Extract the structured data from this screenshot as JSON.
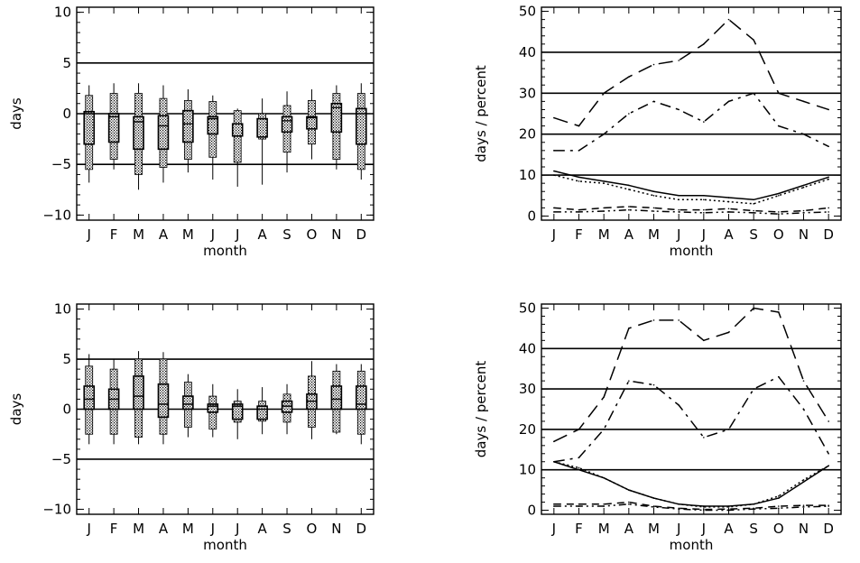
{
  "chart_data": [
    {
      "type": "box",
      "categories": [
        "J",
        "F",
        "M",
        "A",
        "M",
        "J",
        "J",
        "A",
        "S",
        "O",
        "N",
        "D"
      ],
      "xlabel": "month",
      "ylabel": "days",
      "ylim": [
        -10.5,
        10.5
      ],
      "yticks": [
        -10,
        -5,
        0,
        5,
        10
      ],
      "reference_lines": [
        -5,
        0,
        5
      ],
      "boxes": [
        {
          "whisker_low": -6.8,
          "p10": -5.5,
          "q1": -3.0,
          "median": 0.0,
          "q3": 0.2,
          "p90": 1.8,
          "whisker_high": 2.8
        },
        {
          "whisker_low": -5.5,
          "p10": -4.5,
          "q1": -2.8,
          "median": -0.3,
          "q3": 0.0,
          "p90": 2.0,
          "whisker_high": 3.0
        },
        {
          "whisker_low": -7.5,
          "p10": -6.0,
          "q1": -3.5,
          "median": -0.8,
          "q3": -0.3,
          "p90": 2.0,
          "whisker_high": 3.0
        },
        {
          "whisker_low": -6.8,
          "p10": -5.3,
          "q1": -3.5,
          "median": -1.2,
          "q3": -0.2,
          "p90": 1.5,
          "whisker_high": 2.8
        },
        {
          "whisker_low": -5.8,
          "p10": -4.5,
          "q1": -2.8,
          "median": -1.0,
          "q3": 0.3,
          "p90": 1.3,
          "whisker_high": 2.4
        },
        {
          "whisker_low": -6.5,
          "p10": -4.3,
          "q1": -2.0,
          "median": -0.5,
          "q3": -0.3,
          "p90": 1.2,
          "whisker_high": 1.8
        },
        {
          "whisker_low": -7.2,
          "p10": -4.8,
          "q1": -2.2,
          "median": -1.0,
          "q3": -1.0,
          "p90": 0.3,
          "whisker_high": 0.5
        },
        {
          "whisker_low": -7.0,
          "p10": -2.5,
          "q1": -2.3,
          "median": -0.5,
          "q3": -0.5,
          "p90": 0.0,
          "whisker_high": 1.5
        },
        {
          "whisker_low": -5.8,
          "p10": -3.8,
          "q1": -1.8,
          "median": -0.7,
          "q3": -0.3,
          "p90": 0.8,
          "whisker_high": 2.2
        },
        {
          "whisker_low": -4.5,
          "p10": -3.0,
          "q1": -1.5,
          "median": -0.4,
          "q3": -0.3,
          "p90": 1.3,
          "whisker_high": 2.4
        },
        {
          "whisker_low": -5.5,
          "p10": -4.5,
          "q1": -1.8,
          "median": 0.6,
          "q3": 1.0,
          "p90": 2.0,
          "whisker_high": 2.8
        },
        {
          "whisker_low": -6.5,
          "p10": -5.5,
          "q1": -3.0,
          "median": 0.0,
          "q3": 0.5,
          "p90": 2.0,
          "whisker_high": 3.0
        }
      ]
    },
    {
      "type": "line",
      "categories": [
        "J",
        "F",
        "M",
        "A",
        "M",
        "J",
        "J",
        "A",
        "S",
        "O",
        "N",
        "D"
      ],
      "xlabel": "month",
      "ylabel": "days / percent",
      "ylim": [
        -1,
        51
      ],
      "yticks": [
        0,
        10,
        20,
        30,
        40,
        50
      ],
      "reference_lines": [
        10,
        20,
        30,
        40
      ],
      "series": [
        {
          "style": "dashed",
          "values": [
            24,
            22,
            30,
            34,
            37,
            38,
            42,
            48,
            43,
            30,
            28,
            26
          ]
        },
        {
          "style": "dashdot",
          "values": [
            16,
            16,
            20,
            25,
            28,
            26,
            23,
            28,
            30,
            22,
            20,
            17
          ]
        },
        {
          "style": "solid",
          "values": [
            11,
            9.5,
            8.5,
            7.5,
            6,
            5,
            5,
            4.5,
            4,
            5.5,
            7.5,
            9.5
          ]
        },
        {
          "style": "dotted",
          "values": [
            10,
            8.5,
            8,
            6.5,
            5,
            4,
            4,
            3.5,
            3,
            5,
            7,
            9
          ]
        },
        {
          "style": "longdash",
          "values": [
            2,
            1.5,
            2,
            2.3,
            2,
            1.5,
            1.5,
            1.8,
            1.3,
            1,
            1.3,
            2
          ]
        },
        {
          "style": "dashdotdot",
          "values": [
            1,
            1,
            1.2,
            1.5,
            1.2,
            1,
            0.8,
            1,
            0.8,
            0.5,
            0.8,
            1
          ]
        }
      ]
    },
    {
      "type": "box",
      "categories": [
        "J",
        "F",
        "M",
        "A",
        "M",
        "J",
        "J",
        "A",
        "S",
        "O",
        "N",
        "D"
      ],
      "xlabel": "month",
      "ylabel": "days",
      "ylim": [
        -10.5,
        10.5
      ],
      "yticks": [
        -10,
        -5,
        0,
        5,
        10
      ],
      "reference_lines": [
        -5,
        0,
        5
      ],
      "boxes": [
        {
          "whisker_low": -3.5,
          "p10": -2.5,
          "q1": 0.0,
          "median": 1.0,
          "q3": 2.3,
          "p90": 4.3,
          "whisker_high": 5.5
        },
        {
          "whisker_low": -3.5,
          "p10": -2.5,
          "q1": 0.0,
          "median": 1.0,
          "q3": 2.0,
          "p90": 4.0,
          "whisker_high": 5.0
        },
        {
          "whisker_low": -3.5,
          "p10": -2.8,
          "q1": 0.0,
          "median": 1.3,
          "q3": 3.3,
          "p90": 5.0,
          "whisker_high": 5.8
        },
        {
          "whisker_low": -3.5,
          "p10": -2.5,
          "q1": -0.8,
          "median": 0.5,
          "q3": 2.5,
          "p90": 5.0,
          "whisker_high": 5.7
        },
        {
          "whisker_low": -2.8,
          "p10": -1.8,
          "q1": 0.0,
          "median": 0.5,
          "q3": 1.3,
          "p90": 2.7,
          "whisker_high": 3.5
        },
        {
          "whisker_low": -2.8,
          "p10": -2.0,
          "q1": -0.3,
          "median": 0.3,
          "q3": 0.5,
          "p90": 1.3,
          "whisker_high": 2.5
        },
        {
          "whisker_low": -3.0,
          "p10": -1.3,
          "q1": -1.0,
          "median": 0.3,
          "q3": 0.5,
          "p90": 0.8,
          "whisker_high": 2.0
        },
        {
          "whisker_low": -2.5,
          "p10": -1.2,
          "q1": -1.0,
          "median": 0.0,
          "q3": 0.3,
          "p90": 0.8,
          "whisker_high": 2.2
        },
        {
          "whisker_low": -2.5,
          "p10": -1.3,
          "q1": -0.3,
          "median": 0.3,
          "q3": 0.8,
          "p90": 1.5,
          "whisker_high": 2.5
        },
        {
          "whisker_low": -3.0,
          "p10": -1.8,
          "q1": 0.0,
          "median": 0.8,
          "q3": 1.5,
          "p90": 3.3,
          "whisker_high": 4.8
        },
        {
          "whisker_low": -2.5,
          "p10": -2.3,
          "q1": 0.0,
          "median": 1.0,
          "q3": 2.3,
          "p90": 3.8,
          "whisker_high": 4.5
        },
        {
          "whisker_low": -3.5,
          "p10": -2.5,
          "q1": 0.0,
          "median": 0.5,
          "q3": 2.3,
          "p90": 3.8,
          "whisker_high": 4.5
        }
      ]
    },
    {
      "type": "line",
      "categories": [
        "J",
        "F",
        "M",
        "A",
        "M",
        "J",
        "J",
        "A",
        "S",
        "O",
        "N",
        "D"
      ],
      "xlabel": "month",
      "ylabel": "days / percent",
      "ylim": [
        -1,
        51
      ],
      "yticks": [
        0,
        10,
        20,
        30,
        40,
        50
      ],
      "reference_lines": [
        10,
        20,
        30,
        40
      ],
      "series": [
        {
          "style": "dashed",
          "values": [
            17,
            20,
            28,
            45,
            47,
            47,
            42,
            44,
            50,
            49,
            32,
            22
          ]
        },
        {
          "style": "dashdot",
          "values": [
            12,
            13,
            20,
            32,
            31,
            26,
            18,
            20,
            30,
            33,
            25,
            14
          ]
        },
        {
          "style": "solid",
          "values": [
            12,
            10,
            8,
            5,
            3,
            1.5,
            1,
            1,
            1.5,
            3,
            7,
            11
          ]
        },
        {
          "style": "dotted",
          "values": [
            12,
            10.5,
            8,
            5,
            3,
            1.5,
            0.8,
            0.8,
            1.5,
            3.5,
            7.5,
            11
          ]
        },
        {
          "style": "longdash",
          "values": [
            1.5,
            1.5,
            1.5,
            2,
            1,
            0.5,
            0.2,
            0.3,
            0.5,
            1,
            1.2,
            1.2
          ]
        },
        {
          "style": "dashdotdot",
          "values": [
            1,
            1,
            1,
            1.5,
            0.8,
            0.3,
            0,
            0,
            0.3,
            0.5,
            0.8,
            1
          ]
        }
      ]
    }
  ]
}
